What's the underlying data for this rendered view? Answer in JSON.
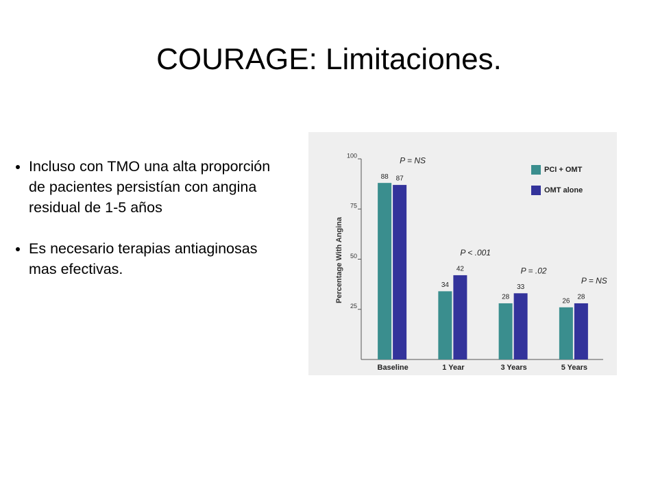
{
  "title": "COURAGE: Limitaciones.",
  "bullets": [
    "Incluso con TMO una alta proporción de pacientes persistían con angina residual de 1-5 años",
    "Es necesario terapias antiaginosas mas efectivas."
  ],
  "chart_data": {
    "type": "bar",
    "y_label": "Percentage With Angina",
    "categories": [
      "Baseline",
      "1 Year",
      "3 Years",
      "5 Years"
    ],
    "annotations": [
      "P = NS",
      "P < .001",
      "P = .02",
      "P = NS"
    ],
    "series": [
      {
        "name": "PCI + OMT",
        "color": "#3a8e8e",
        "values": [
          88,
          34,
          28,
          26
        ]
      },
      {
        "name": "OMT alone",
        "color": "#33339b",
        "values": [
          87,
          42,
          33,
          28
        ]
      }
    ],
    "ylim": [
      0,
      100
    ],
    "yticks": [
      25,
      50,
      75,
      100
    ],
    "legend": "top-right"
  }
}
